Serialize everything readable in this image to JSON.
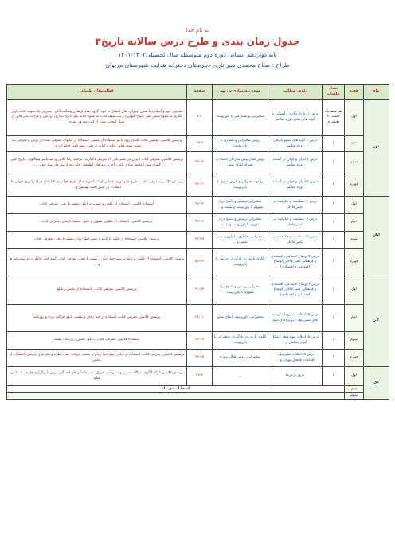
{
  "header": {
    "basmala": "به نام خدا",
    "title": "جدول زمان بندی و طرح درس سالانه تاریخ۳",
    "subtitle": "پایه دوازدهم انسانی دوره دوم متوسطه سال تحصیلی۱۴۰۲-۱۴۰۱",
    "designer": "طراح : صباح محمدی دبیر تاریخ  دبیرستان دخترانه هدایت  شهرستان مریوان"
  },
  "columns": {
    "month": "ماه",
    "week": "هفته",
    "sessions": "تعداد جلسات",
    "lesson": "رئوس مطالب",
    "method": "شیوه پیشنهادی تدریس",
    "pages": "صفحه",
    "activities": "فعالیت‌های تکمیلی"
  },
  "months": [
    {
      "name": "مهر",
      "rows": [
        {
          "week": "اول",
          "sessions": "هر هفته یک جلسه ۹۰ دقیقه ای",
          "lesson": "درس ۱: تاریخ نگاری و آشنایی با گونه های منابع دوره معاصر",
          "method": "سخنرانی و مشارکتی با پاورپوینت",
          "pages": "۷-۲",
          "activities": "معرفی خود و آشنایی با نقش آموزان، بیان انتظارات خود، گروه بندی و شرح وظائف آنان ، معرفی یک نمونه کتاب تاریخ نگاری به شیوه سنتی مثل ناسخ التواریخ و یک نمونه کتاب به شیوه جدید مثل تاریخ بیداری ایرانیان و قرائت متن هایی از قبیل انتخاب شده از کتب  معرفی شده"
        },
        {
          "week": "دوم",
          "sessions": "۱",
          "lesson": "درس ۱:گونه های منابع تاریخی دوره معاصر",
          "method": "روش سخنرانی و همیاری با پاورپوینت",
          "pages": "۱۵-۸",
          "activities": "پرسش کلاسی، نوشتن نکات کلیدی روی تابلو استفاده از عکس، استفاده از کتابهای معرفی شده در درس و معرفی یک نمونه سند، فیلم، عکس، کتاب تاریخی، سفرنامه، خاطرات و..."
        },
        {
          "week": "سوم",
          "sessions": "۱",
          "lesson": "درس ۲:ایران و جهان در آستانه دوره معاصر",
          "method": "روش فعال پیش سازمان دهنده به همراه ایفای نقش",
          "pages": "۲۵-۱۶",
          "activities": "پرسش کلاسی، معرفی کتاب (ایران در عصر نادر (از مارتیل لاکهارت) ترجمه رضا گلابی و سیدناصر شکالوی ، تاریخ گیتی گشای میرزا محمد صادق نامی، آخرین روزهای لطفعلی خان زند از سر هارفورد جونز و..."
        },
        {
          "week": "چهارم",
          "sessions": "۱",
          "lesson": "درس ۲:ایران و جهان در آستانه دوره معاصر",
          "method": "روش سخنرانی و بارش مغزی با پاورپوینت",
          "pages": "۲۶-۳۱",
          "activities": "پرسش کلاسی، معرفی کتاب : تاریخ امپراتوری عثمانی از استانفورد شاو؛ تاریخ جهانی ج ۲ (تبادل در امپراتوری جهانی تا انقلاب) در عصر احمد بهمنش و..."
        }
      ]
    },
    {
      "name": "آبان",
      "rows": [
        {
          "week": "اول",
          "sessions": "۱",
          "lesson": "درس ۳: سیاست و حکومت در عصر قاجار",
          "method": "سخنرانی پرسش و پاسخ درک مفهوم با پاورپوینت و نقشه و ...",
          "pages": "۳۷-۳۲",
          "activities": "استفاده کلاسی، استفاده از عکس و تصویر و تابلو ، نقشه تاریخی، معرفی کتاب"
        },
        {
          "week": "دوم",
          "sessions": "۱",
          "lesson": "درس ۳: سیاست و حکومت در عصر قاجار",
          "method": "سخنرانی پرسش و پاسخ درک مفهوم با پاورپوینت و نقشه",
          "pages": "۴۴-۳۸",
          "activities": "پرسش کلاسی، استفاده از عکس، تصویر و تابلو ، نقشه تاریخی، معرفی کتاب"
        },
        {
          "week": "سوم",
          "sessions": "۱",
          "lesson": "درس ۳: سیاست و حکومت در عصر قاجار",
          "method": "سخنرانی، همیاری، با پاورپوینت و نقشه و ...",
          "pages": "۴۶-۴۵",
          "activities": "پرسش کلاسی، استفاده از عکس و تابلو و رسم خط زمان، نقشه تاریخی، معرفی کتاب"
        },
        {
          "week": "چهارم",
          "sessions": "۱",
          "lesson": "درس ۴:اوضاع اجتماعی، اقتصادی و فرهنگی عصر قاجار (اوضاع اجتماعی و اقتصادی)",
          "method": "الگوی بارش در یادگیری، تدریس با پاورپوینت",
          "pages": "۵۲-۴۷",
          "activities": "پرسش کلاسی، استفاده از عکس و تابلو و رسم خط زمان ، نقشه تاریخی، معرفی کتاب آلبوم کتب خاطرات و سفرنامه ها و ..."
        }
      ]
    },
    {
      "name": "آذر",
      "rows": [
        {
          "week": "اول",
          "sessions": "۱",
          "lesson": "درس ۴:اوضاع اجتماعی، اقتصادی و فرهنگی عصر قاجار (اوضاع اجتماعی و اقتصادی)",
          "method": "سخنرانی پرسش و پاسخ درک مفهوم با پاورپوینت",
          "pages": "۶۰-۵۳",
          "activities": "پرسش کلاسی، معرفی کتاب ، استفاده از عکس و تابلو"
        },
        {
          "week": "دوم",
          "sessions": "۱",
          "lesson": "درس ۵: انقلاب مشروطه : زمینه های مشروطه - رویدادهای مهم",
          "method": "سخنرانی، پاورپوینت، ایفای نقش",
          "pages": "۶۸-۶۱",
          "activities": "پرسش کلاسی، معرفی کتاب، استفاده از خط زمان و نقشه، تابلو، قرائت برده و روزنامه"
        },
        {
          "week": "سوم",
          "sessions": "۱",
          "lesson": "درس ۵: انقلاب مشروطه : شکل گیری مجلس و...",
          "method": "الگوی بارش در یادگیری، سخنرانی با پاورپوینت",
          "pages": "۷۴-۶۹",
          "activities": "استفاده کلاسی، معرفی کتاب ، تابلو، عکس، روزنامه، نقشه"
        },
        {
          "week": "چهارم",
          "sessions": "۱",
          "lesson": "درس ۵: انقلاب مشروطه : اقدامات فاتحان تهران و ...",
          "method": "سخنرانی، روش فعال پروژه",
          "pages": "۷۸-۷۵",
          "activities": "پرسش کلاسی، معرفی کتاب، استفاده از تابلو، رسم خط زمان و نقشه، قرائت چند خاطره و نقل قول تاریخی، استفاده از عکس"
        }
      ]
    },
    {
      "name": "دی",
      "rows": [
        {
          "week": "اول",
          "sessions": "۱",
          "lesson": "مرور درس‌ها",
          "method": "_",
          "pages": "۷۸-۲",
          "activities": "پرسش کلاسی، ارائه الگوی سوالات تستی و تشریحی، جبران نقب ماندگی‌های احتمالی درس با برگزاری فارنت یا نمایش فیلم"
        },
        {
          "week": "دوم",
          "final": "امتحانات دی ماه"
        },
        {
          "week": "سوم"
        }
      ]
    }
  ]
}
